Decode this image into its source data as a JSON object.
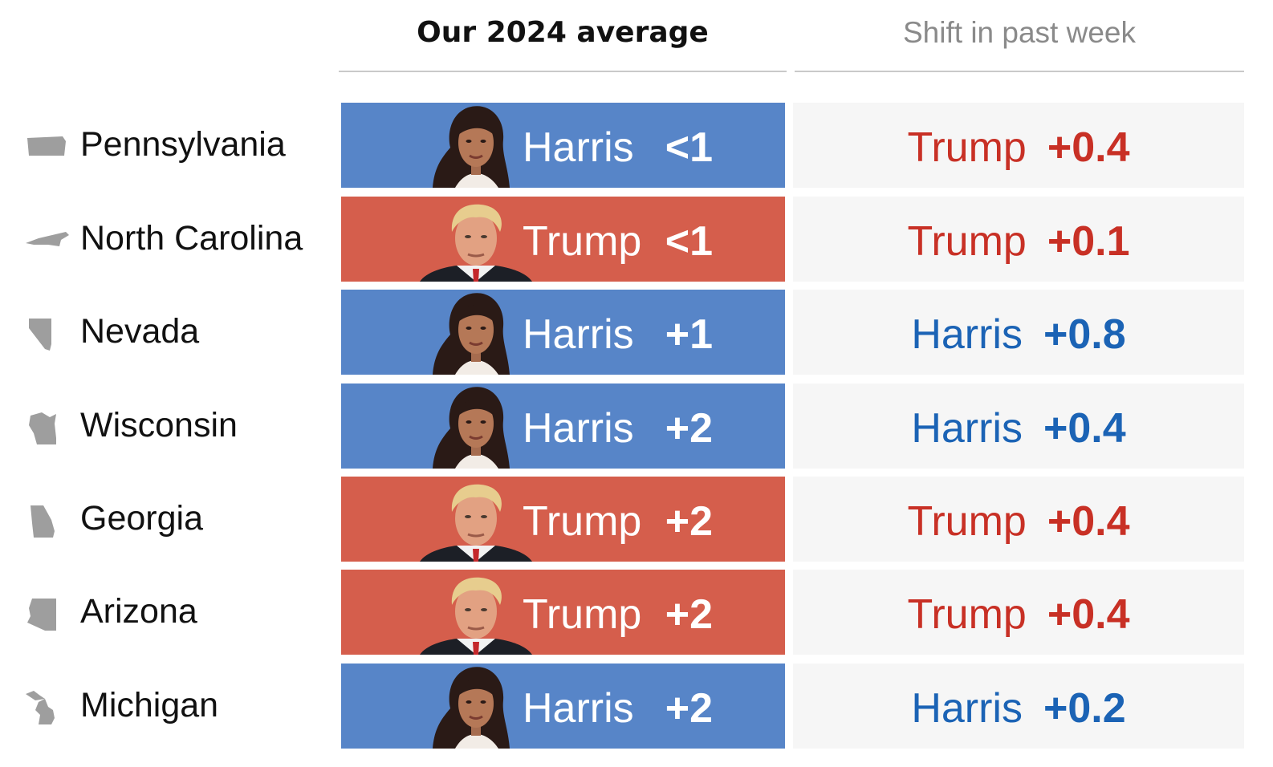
{
  "headers": {
    "average": "Our 2024 average",
    "shift": "Shift in past week"
  },
  "colors": {
    "harris_fill": "#5785c8",
    "trump_fill": "#d55e4c",
    "harris_text": "#1b63b5",
    "trump_text": "#c83025",
    "state_icon": "#9e9e9e"
  },
  "rows": [
    {
      "state": "Pennsylvania",
      "icon": "pennsylvania-state-icon",
      "leader": "Harris",
      "margin": "<1",
      "shift_leader": "Trump",
      "shift_value": "+0.4"
    },
    {
      "state": "North Carolina",
      "icon": "north-carolina-state-icon",
      "leader": "Trump",
      "margin": "<1",
      "shift_leader": "Trump",
      "shift_value": "+0.1"
    },
    {
      "state": "Nevada",
      "icon": "nevada-state-icon",
      "leader": "Harris",
      "margin": "+1",
      "shift_leader": "Harris",
      "shift_value": "+0.8"
    },
    {
      "state": "Wisconsin",
      "icon": "wisconsin-state-icon",
      "leader": "Harris",
      "margin": "+2",
      "shift_leader": "Harris",
      "shift_value": "+0.4"
    },
    {
      "state": "Georgia",
      "icon": "georgia-state-icon",
      "leader": "Trump",
      "margin": "+2",
      "shift_leader": "Trump",
      "shift_value": "+0.4"
    },
    {
      "state": "Arizona",
      "icon": "arizona-state-icon",
      "leader": "Trump",
      "margin": "+2",
      "shift_leader": "Trump",
      "shift_value": "+0.4"
    },
    {
      "state": "Michigan",
      "icon": "michigan-state-icon",
      "leader": "Harris",
      "margin": "+2",
      "shift_leader": "Harris",
      "shift_value": "+0.2"
    }
  ],
  "chart_data": {
    "type": "table",
    "columns": [
      "",
      "Our 2024 average",
      "Shift in past week"
    ],
    "rows": [
      [
        "Pennsylvania",
        "Harris <1",
        "Trump +0.4"
      ],
      [
        "North Carolina",
        "Trump <1",
        "Trump +0.1"
      ],
      [
        "Nevada",
        "Harris +1",
        "Harris +0.8"
      ],
      [
        "Wisconsin",
        "Harris +2",
        "Harris +0.4"
      ],
      [
        "Georgia",
        "Trump +2",
        "Trump +0.4"
      ],
      [
        "Arizona",
        "Trump +2",
        "Trump +0.4"
      ],
      [
        "Michigan",
        "Harris +2",
        "Harris +0.2"
      ]
    ]
  }
}
